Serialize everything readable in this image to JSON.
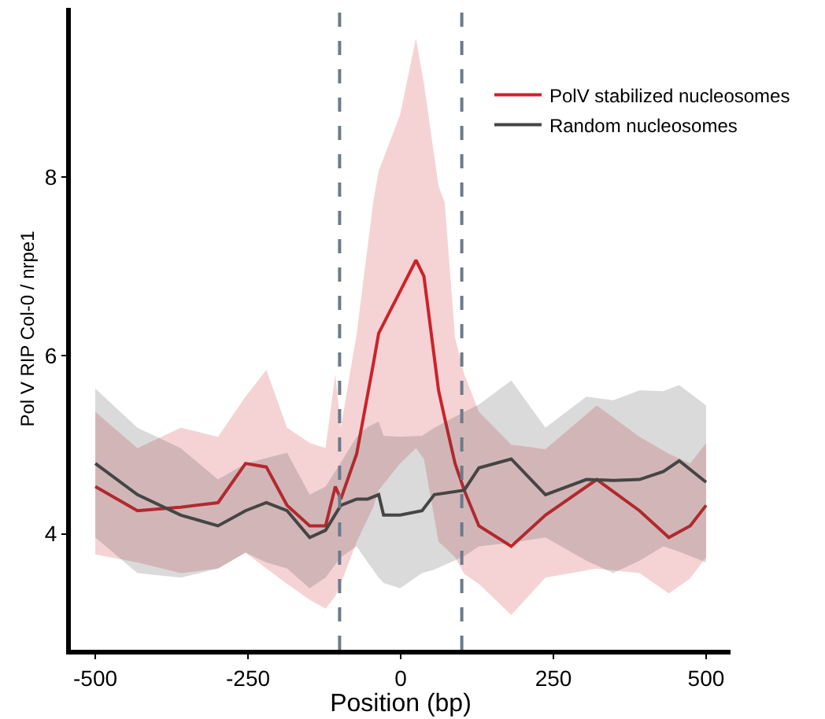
{
  "chart_data": {
    "type": "line",
    "xlabel": "Position (bp)",
    "ylabel": "Pol V RIP Col-0 / nrpe1",
    "xlim": [
      -540,
      540
    ],
    "xticks": [
      -500,
      -250,
      0,
      250,
      500
    ],
    "ylim": [
      2.7,
      9.9
    ],
    "yticks": [
      4,
      6,
      8
    ],
    "legend": "top right",
    "line_style": "solid",
    "marker": "none",
    "series": [
      {
        "name": "PolV stabilized nucleosomes",
        "color": "#cc2229",
        "x": [
          -500,
          -431,
          -360,
          -299,
          -254,
          -220,
          -186,
          -149,
          -123,
          -107,
          -98,
          -72,
          -45,
          -36,
          -1,
          25,
          38,
          62,
          72,
          89,
          104,
          128,
          181,
          237,
          321,
          391,
          439,
          474,
          500
        ],
        "values": [
          4.53,
          4.26,
          4.3,
          4.35,
          4.79,
          4.75,
          4.32,
          4.09,
          4.09,
          4.53,
          4.39,
          4.9,
          5.9,
          6.25,
          6.72,
          7.07,
          6.89,
          5.61,
          5.3,
          4.79,
          4.49,
          4.09,
          3.86,
          4.21,
          4.61,
          4.26,
          3.96,
          4.09,
          4.32
        ],
        "lower": [
          3.77,
          3.68,
          3.56,
          3.61,
          3.79,
          3.61,
          3.44,
          3.26,
          3.16,
          3.3,
          3.44,
          3.91,
          4.3,
          4.49,
          4.79,
          4.96,
          4.84,
          3.91,
          3.85,
          3.74,
          3.55,
          3.44,
          3.09,
          3.51,
          3.61,
          3.56,
          3.33,
          3.5,
          3.74
        ],
        "upper": [
          5.37,
          4.96,
          5.19,
          5.09,
          5.54,
          5.84,
          5.19,
          5.02,
          4.96,
          5.79,
          5.19,
          6.25,
          7.72,
          8.07,
          8.7,
          9.56,
          9.05,
          7.9,
          7.72,
          6.2,
          5.79,
          5.37,
          5.0,
          4.95,
          5.44,
          5.09,
          4.9,
          4.79,
          5.02
        ]
      },
      {
        "name": "Random nucleosomes",
        "color": "#454545",
        "x": [
          -500,
          -431,
          -360,
          -299,
          -254,
          -220,
          -186,
          -149,
          -123,
          -98,
          -72,
          -54,
          -36,
          -28,
          -1,
          35,
          55,
          104,
          128,
          181,
          237,
          304,
          348,
          391,
          430,
          456,
          500
        ],
        "values": [
          4.79,
          4.44,
          4.21,
          4.09,
          4.26,
          4.35,
          4.26,
          3.96,
          4.04,
          4.32,
          4.39,
          4.39,
          4.44,
          4.21,
          4.21,
          4.26,
          4.44,
          4.49,
          4.74,
          4.84,
          4.44,
          4.61,
          4.6,
          4.61,
          4.7,
          4.82,
          4.58
        ],
        "lower": [
          3.96,
          3.56,
          3.51,
          3.61,
          3.79,
          3.68,
          3.61,
          3.39,
          3.51,
          3.74,
          3.86,
          3.68,
          3.51,
          3.45,
          3.39,
          3.56,
          3.6,
          3.75,
          3.86,
          3.9,
          3.96,
          3.7,
          3.56,
          3.7,
          3.86,
          3.8,
          3.68
        ],
        "upper": [
          5.63,
          5.19,
          4.96,
          4.61,
          4.79,
          4.85,
          4.91,
          4.44,
          4.53,
          4.8,
          5.09,
          5.2,
          5.26,
          5.1,
          5.09,
          5.1,
          5.19,
          5.37,
          5.45,
          5.72,
          5.19,
          5.54,
          5.5,
          5.61,
          5.6,
          5.67,
          5.44
        ]
      }
    ],
    "ref_lines": [
      {
        "axis": "x",
        "value": -100,
        "color": "#6b7b8c",
        "line_style": "dashed"
      },
      {
        "axis": "x",
        "value": 100,
        "color": "#6b7b8c",
        "line_style": "dashed"
      }
    ]
  }
}
